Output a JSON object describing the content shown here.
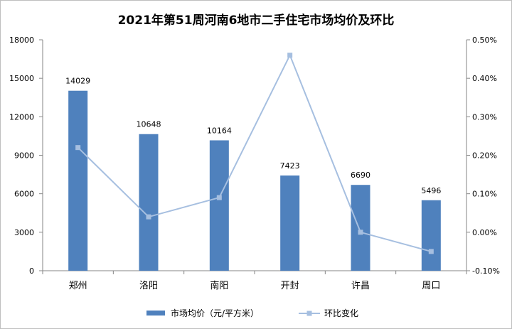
{
  "chart_data": {
    "type": "bar",
    "title": "2021年第51周河南6地市二手住宅市场均价及环比",
    "categories": [
      "郑州",
      "洛阳",
      "南阳",
      "开封",
      "许昌",
      "周口"
    ],
    "series": [
      {
        "name": "市场均价（元/平方米）",
        "type": "bar",
        "axis": "left",
        "values": [
          14029,
          10648,
          10164,
          7423,
          6690,
          5496
        ],
        "color": "#4f81bd"
      },
      {
        "name": "环比变化",
        "type": "line",
        "axis": "right",
        "values": [
          0.22,
          0.04,
          0.09,
          0.46,
          0.0,
          -0.05
        ],
        "color": "#a6bfe0"
      }
    ],
    "y_left": {
      "min": 0,
      "max": 18000,
      "ticks": [
        "0",
        "3000",
        "6000",
        "9000",
        "12000",
        "15000",
        "18000"
      ]
    },
    "y_right": {
      "min": -0.1,
      "max": 0.5,
      "ticks": [
        "-0.10%",
        "0.00%",
        "0.10%",
        "0.20%",
        "0.30%",
        "0.40%",
        "0.50%"
      ]
    },
    "data_labels": [
      "14029",
      "10648",
      "10164",
      "7423",
      "6690",
      "5496"
    ],
    "legend_position": "bottom",
    "grid": false
  }
}
